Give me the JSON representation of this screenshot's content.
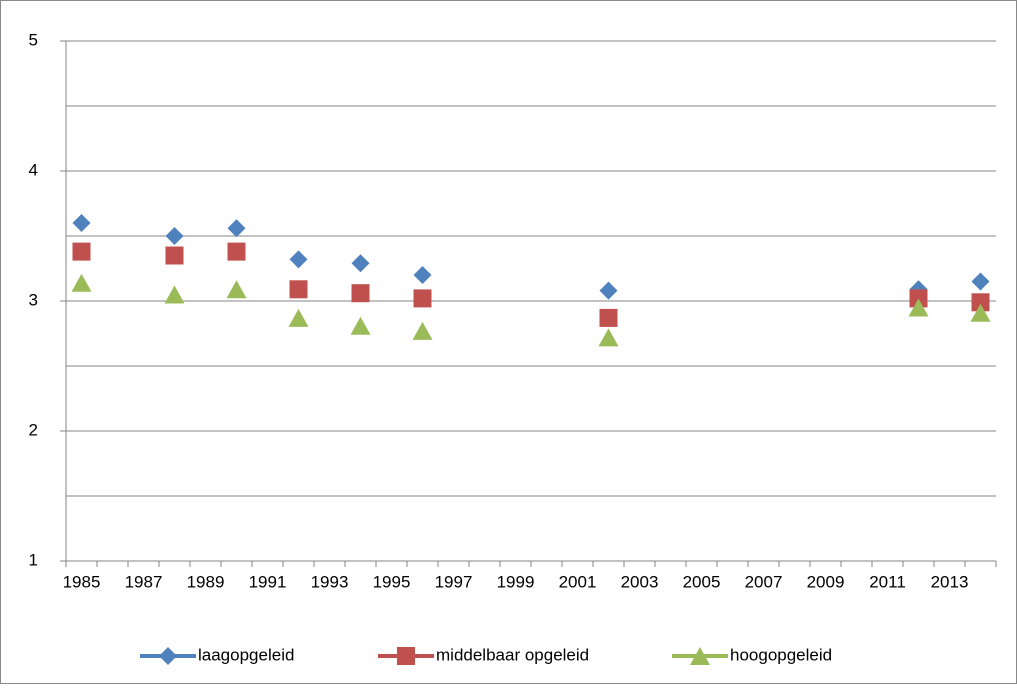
{
  "chart_data": {
    "type": "scatter",
    "x": [
      1985,
      1988,
      1990,
      1992,
      1994,
      1996,
      2002,
      2012,
      2014
    ],
    "series": [
      {
        "name": "laagopgeleid",
        "color": "#4f81bd",
        "marker": "diamond",
        "values": [
          3.6,
          3.5,
          3.56,
          3.32,
          3.29,
          3.2,
          3.08,
          3.09,
          3.15
        ]
      },
      {
        "name": "middelbaar opgeleid",
        "color": "#c0504d",
        "marker": "square",
        "values": [
          3.38,
          3.35,
          3.38,
          3.09,
          3.06,
          3.02,
          2.87,
          3.02,
          2.99
        ]
      },
      {
        "name": "hoogopgeleid",
        "color": "#9bbb59",
        "marker": "triangle",
        "values": [
          3.14,
          3.05,
          3.09,
          2.87,
          2.81,
          2.77,
          2.72,
          2.95,
          2.91
        ]
      }
    ],
    "xlim": [
      1984.5,
      2014.5
    ],
    "xticks": [
      1985,
      1987,
      1989,
      1991,
      1993,
      1995,
      1997,
      1999,
      2001,
      2003,
      2005,
      2007,
      2009,
      2011,
      2013
    ],
    "ylim": [
      1,
      5
    ],
    "yticks": [
      1,
      2,
      3,
      4,
      5
    ],
    "grid": true,
    "legend": "bottom"
  }
}
